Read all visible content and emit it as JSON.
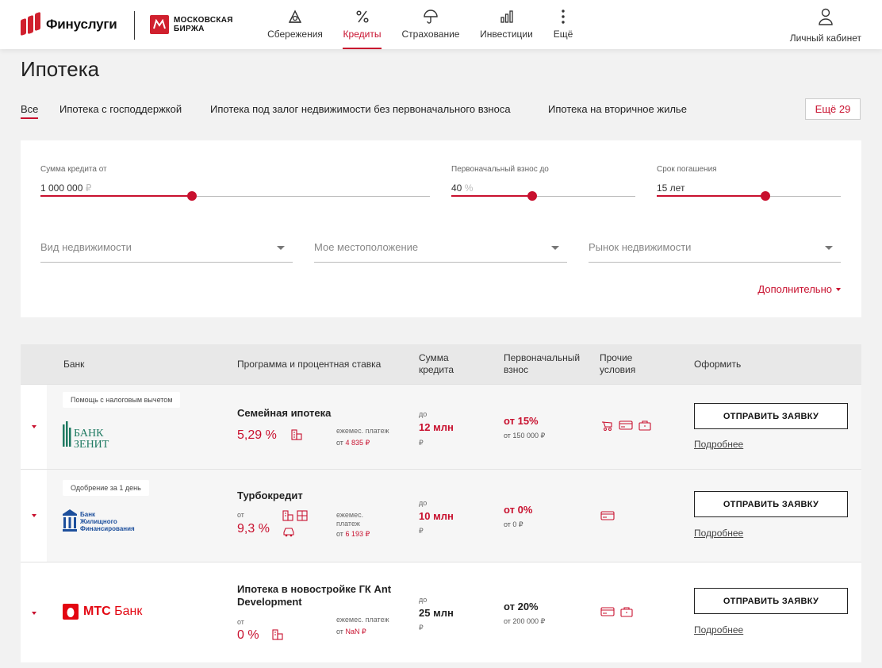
{
  "header": {
    "brand": "Финуслуги",
    "partner_line1": "МОСКОВСКАЯ",
    "partner_line2": "БИРЖА",
    "nav": [
      {
        "label": "Сбережения",
        "icon": "savings-icon"
      },
      {
        "label": "Кредиты",
        "icon": "percent-icon",
        "active": true
      },
      {
        "label": "Страхование",
        "icon": "umbrella-icon"
      },
      {
        "label": "Инвестиции",
        "icon": "chart-icon"
      },
      {
        "label": "Ещё",
        "icon": "more-vertical-icon"
      }
    ],
    "cabinet": "Личный кабинет"
  },
  "page": {
    "title": "Ипотека"
  },
  "tabs": [
    {
      "label": "Все",
      "active": true
    },
    {
      "label": "Ипотека с господдержкой"
    },
    {
      "label": "Ипотека под залог недвижимости без первоначального взноса"
    },
    {
      "label": "Ипотека на вторичное жилье"
    }
  ],
  "tabs_more": "Ещё 29",
  "filters": {
    "amount": {
      "caption": "Сумма кредита от",
      "value": "1 000 000",
      "unit": "₽",
      "level": 0.39
    },
    "down": {
      "caption": "Первоначальный взнос до",
      "value": "40",
      "unit": "%",
      "level": 0.44
    },
    "term": {
      "caption": "Срок погашения",
      "value": "15 лет",
      "unit": "",
      "level": 0.59
    },
    "property_type": "Вид недвижимости",
    "location": "Мое местоположение",
    "market": "Рынок недвижимости",
    "extra": "Дополнительно"
  },
  "table": {
    "headers": {
      "bank": "Банк",
      "program": "Программа и процентная ставка",
      "sum": "Сумма кредита",
      "down": "Первоначальный взнос",
      "other": "Прочие условия",
      "apply": "Оформить"
    },
    "rows": [
      {
        "badge": "Помощь с налоговым вычетом",
        "bank_name": "БАНК ЗЕНИТ",
        "program": "Семейная ипотека",
        "rate_from": "",
        "rate": "5,29 %",
        "payment_caption": "ежемес. платеж",
        "payment_from": "от",
        "payment_value": "4 835 ₽",
        "sum_caption": "до",
        "sum_value": "12 млн",
        "sum_unit": "₽",
        "down_value": "от 15%",
        "down_sub": "от 150 000 ₽",
        "apply": "ОТПРАВИТЬ ЗАЯВКУ",
        "details": "Подробнее"
      },
      {
        "badge": "Одобрение за 1 день",
        "bank_name_l1": "Банк",
        "bank_name_l2": "Жилищного",
        "bank_name_l3": "Финансирования",
        "program": "Турбокредит",
        "rate_from": "от",
        "rate": "9,3 %",
        "payment_caption": "ежемес. платеж",
        "payment_from": "от",
        "payment_value": "6 193 ₽",
        "sum_caption": "до",
        "sum_value": "10 млн",
        "sum_unit": "₽",
        "down_value": "от 0%",
        "down_sub": "от 0 ₽",
        "apply": "ОТПРАВИТЬ ЗАЯВКУ",
        "details": "Подробнее"
      },
      {
        "badge": "",
        "bank_name": "МТС Банк",
        "program": "Ипотека в новостройке ГК Ant Development",
        "rate_from": "от",
        "rate": "0 %",
        "payment_caption": "ежемес. платеж",
        "payment_from": "от",
        "payment_value": "NaN ₽",
        "sum_caption": "до",
        "sum_value": "25 млн",
        "sum_unit": "₽",
        "down_value": "от 20%",
        "down_sub": "от 200 000 ₽",
        "apply": "ОТПРАВИТЬ ЗАЯВКУ",
        "details": "Подробнее"
      }
    ]
  },
  "colors": {
    "accent": "#c8102e",
    "background": "#f2f2f2"
  }
}
